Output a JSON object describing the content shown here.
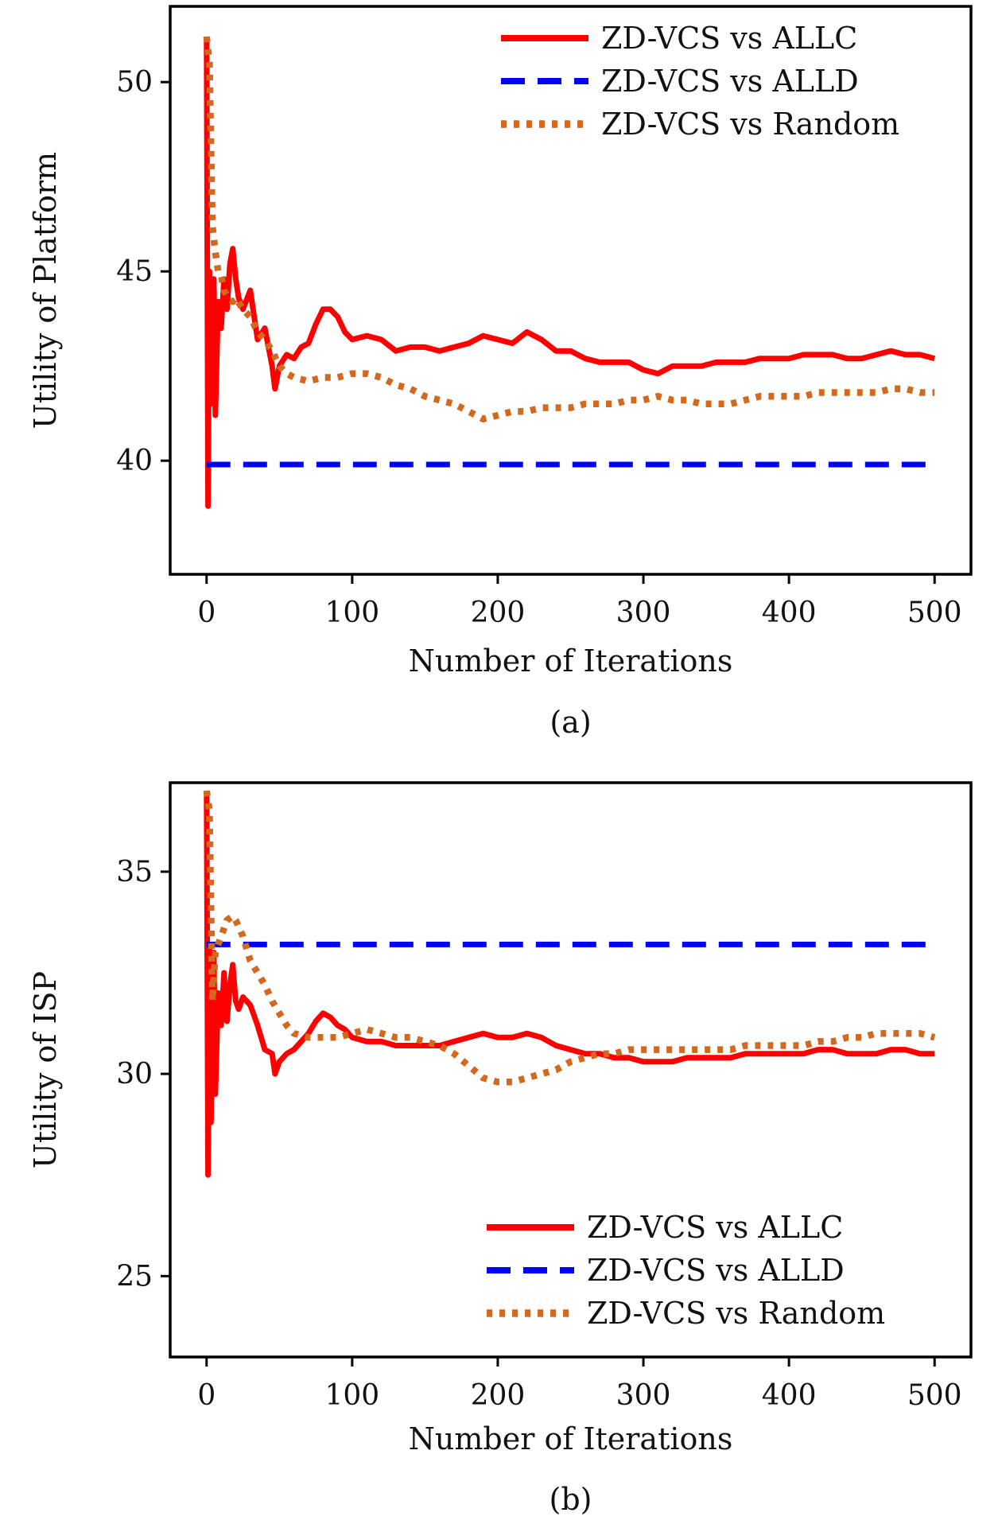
{
  "chart_data": [
    {
      "type": "line",
      "caption": "(a)",
      "xlabel": "Number of Iterations",
      "ylabel": "Utility of Platform",
      "xlim": [
        -25,
        525
      ],
      "ylim": [
        37,
        52
      ],
      "xticks": [
        0,
        100,
        200,
        300,
        400,
        500
      ],
      "yticks": [
        40,
        45,
        50
      ],
      "grid": false,
      "legend_position": "top-right",
      "series": [
        {
          "name": "ZD-VCS vs ALLC",
          "color": "#ff0000",
          "style": "solid",
          "points": [
            [
              0,
              51.2
            ],
            [
              1,
              38.8
            ],
            [
              2,
              45.0
            ],
            [
              3,
              41.5
            ],
            [
              5,
              44.8
            ],
            [
              6,
              41.2
            ],
            [
              8,
              44.2
            ],
            [
              10,
              43.5
            ],
            [
              12,
              44.8
            ],
            [
              14,
              44.0
            ],
            [
              16,
              45.2
            ],
            [
              18,
              45.6
            ],
            [
              20,
              44.8
            ],
            [
              22,
              44.3
            ],
            [
              25,
              44.0
            ],
            [
              30,
              44.5
            ],
            [
              35,
              43.2
            ],
            [
              40,
              43.5
            ],
            [
              45,
              42.5
            ],
            [
              47,
              41.9
            ],
            [
              50,
              42.5
            ],
            [
              55,
              42.8
            ],
            [
              60,
              42.7
            ],
            [
              65,
              43.0
            ],
            [
              70,
              43.1
            ],
            [
              75,
              43.6
            ],
            [
              80,
              44.0
            ],
            [
              85,
              44.0
            ],
            [
              90,
              43.8
            ],
            [
              95,
              43.4
            ],
            [
              100,
              43.2
            ],
            [
              110,
              43.3
            ],
            [
              120,
              43.2
            ],
            [
              130,
              42.9
            ],
            [
              140,
              43.0
            ],
            [
              150,
              43.0
            ],
            [
              160,
              42.9
            ],
            [
              170,
              43.0
            ],
            [
              180,
              43.1
            ],
            [
              190,
              43.3
            ],
            [
              200,
              43.2
            ],
            [
              210,
              43.1
            ],
            [
              220,
              43.4
            ],
            [
              230,
              43.2
            ],
            [
              240,
              42.9
            ],
            [
              250,
              42.9
            ],
            [
              260,
              42.7
            ],
            [
              270,
              42.6
            ],
            [
              280,
              42.6
            ],
            [
              290,
              42.6
            ],
            [
              300,
              42.4
            ],
            [
              310,
              42.3
            ],
            [
              320,
              42.5
            ],
            [
              330,
              42.5
            ],
            [
              340,
              42.5
            ],
            [
              350,
              42.6
            ],
            [
              360,
              42.6
            ],
            [
              370,
              42.6
            ],
            [
              380,
              42.7
            ],
            [
              390,
              42.7
            ],
            [
              400,
              42.7
            ],
            [
              410,
              42.8
            ],
            [
              420,
              42.8
            ],
            [
              430,
              42.8
            ],
            [
              440,
              42.7
            ],
            [
              450,
              42.7
            ],
            [
              460,
              42.8
            ],
            [
              470,
              42.9
            ],
            [
              480,
              42.8
            ],
            [
              490,
              42.8
            ],
            [
              500,
              42.7
            ]
          ]
        },
        {
          "name": "ZD-VCS vs ALLD",
          "color": "#0000ff",
          "style": "dashed",
          "points": [
            [
              0,
              39.9
            ],
            [
              500,
              39.9
            ]
          ]
        },
        {
          "name": "ZD-VCS vs Random",
          "color": "#d2691e",
          "style": "dotted",
          "points": [
            [
              0,
              51.2
            ],
            [
              2,
              50.5
            ],
            [
              4,
              46.2
            ],
            [
              6,
              45.5
            ],
            [
              8,
              45.0
            ],
            [
              10,
              44.9
            ],
            [
              12,
              44.5
            ],
            [
              15,
              44.3
            ],
            [
              18,
              44.2
            ],
            [
              20,
              44.3
            ],
            [
              25,
              44.0
            ],
            [
              30,
              43.8
            ],
            [
              35,
              43.4
            ],
            [
              40,
              43.2
            ],
            [
              45,
              42.9
            ],
            [
              50,
              42.5
            ],
            [
              55,
              42.3
            ],
            [
              60,
              42.2
            ],
            [
              70,
              42.1
            ],
            [
              80,
              42.2
            ],
            [
              90,
              42.2
            ],
            [
              100,
              42.3
            ],
            [
              110,
              42.3
            ],
            [
              120,
              42.2
            ],
            [
              130,
              42.0
            ],
            [
              140,
              41.9
            ],
            [
              150,
              41.7
            ],
            [
              160,
              41.6
            ],
            [
              170,
              41.5
            ],
            [
              180,
              41.3
            ],
            [
              190,
              41.1
            ],
            [
              200,
              41.2
            ],
            [
              210,
              41.3
            ],
            [
              220,
              41.3
            ],
            [
              230,
              41.4
            ],
            [
              240,
              41.4
            ],
            [
              250,
              41.4
            ],
            [
              260,
              41.5
            ],
            [
              270,
              41.5
            ],
            [
              280,
              41.5
            ],
            [
              290,
              41.6
            ],
            [
              300,
              41.6
            ],
            [
              310,
              41.7
            ],
            [
              320,
              41.6
            ],
            [
              330,
              41.6
            ],
            [
              340,
              41.5
            ],
            [
              350,
              41.5
            ],
            [
              360,
              41.5
            ],
            [
              370,
              41.6
            ],
            [
              380,
              41.7
            ],
            [
              390,
              41.7
            ],
            [
              400,
              41.7
            ],
            [
              410,
              41.7
            ],
            [
              420,
              41.8
            ],
            [
              430,
              41.8
            ],
            [
              440,
              41.8
            ],
            [
              450,
              41.8
            ],
            [
              460,
              41.8
            ],
            [
              470,
              41.9
            ],
            [
              480,
              41.9
            ],
            [
              490,
              41.8
            ],
            [
              500,
              41.8
            ]
          ]
        }
      ]
    },
    {
      "type": "line",
      "caption": "(b)",
      "xlabel": "Number of Iterations",
      "ylabel": "Utility of ISP",
      "xlim": [
        -25,
        525
      ],
      "ylim": [
        23,
        37.2
      ],
      "xticks": [
        0,
        100,
        200,
        300,
        400,
        500
      ],
      "yticks": [
        25,
        30,
        35
      ],
      "grid": false,
      "legend_position": "bottom-right",
      "series": [
        {
          "name": "ZD-VCS vs ALLC",
          "color": "#ff0000",
          "style": "solid",
          "points": [
            [
              0,
              37.0
            ],
            [
              1,
              27.5
            ],
            [
              2,
              33.2
            ],
            [
              3,
              28.8
            ],
            [
              5,
              33.0
            ],
            [
              6,
              29.5
            ],
            [
              8,
              32.0
            ],
            [
              10,
              31.2
            ],
            [
              12,
              32.5
            ],
            [
              14,
              31.3
            ],
            [
              16,
              32.2
            ],
            [
              18,
              32.7
            ],
            [
              20,
              31.8
            ],
            [
              22,
              31.6
            ],
            [
              25,
              31.9
            ],
            [
              30,
              31.7
            ],
            [
              35,
              31.2
            ],
            [
              40,
              30.6
            ],
            [
              45,
              30.5
            ],
            [
              47,
              30.0
            ],
            [
              50,
              30.3
            ],
            [
              55,
              30.5
            ],
            [
              60,
              30.6
            ],
            [
              65,
              30.8
            ],
            [
              70,
              31.0
            ],
            [
              75,
              31.3
            ],
            [
              80,
              31.5
            ],
            [
              85,
              31.4
            ],
            [
              90,
              31.2
            ],
            [
              95,
              31.1
            ],
            [
              100,
              30.9
            ],
            [
              110,
              30.8
            ],
            [
              120,
              30.8
            ],
            [
              130,
              30.7
            ],
            [
              140,
              30.7
            ],
            [
              150,
              30.7
            ],
            [
              160,
              30.7
            ],
            [
              170,
              30.8
            ],
            [
              180,
              30.9
            ],
            [
              190,
              31.0
            ],
            [
              200,
              30.9
            ],
            [
              210,
              30.9
            ],
            [
              220,
              31.0
            ],
            [
              230,
              30.9
            ],
            [
              240,
              30.7
            ],
            [
              250,
              30.6
            ],
            [
              260,
              30.5
            ],
            [
              270,
              30.5
            ],
            [
              280,
              30.4
            ],
            [
              290,
              30.4
            ],
            [
              300,
              30.3
            ],
            [
              310,
              30.3
            ],
            [
              320,
              30.3
            ],
            [
              330,
              30.4
            ],
            [
              340,
              30.4
            ],
            [
              350,
              30.4
            ],
            [
              360,
              30.4
            ],
            [
              370,
              30.5
            ],
            [
              380,
              30.5
            ],
            [
              390,
              30.5
            ],
            [
              400,
              30.5
            ],
            [
              410,
              30.5
            ],
            [
              420,
              30.6
            ],
            [
              430,
              30.6
            ],
            [
              440,
              30.5
            ],
            [
              450,
              30.5
            ],
            [
              460,
              30.5
            ],
            [
              470,
              30.6
            ],
            [
              480,
              30.6
            ],
            [
              490,
              30.5
            ],
            [
              500,
              30.5
            ]
          ]
        },
        {
          "name": "ZD-VCS vs ALLD",
          "color": "#0000ff",
          "style": "dashed",
          "points": [
            [
              0,
              33.2
            ],
            [
              500,
              33.2
            ]
          ]
        },
        {
          "name": "ZD-VCS vs Random",
          "color": "#d2691e",
          "style": "dotted",
          "points": [
            [
              0,
              37.0
            ],
            [
              2,
              36.5
            ],
            [
              4,
              31.8
            ],
            [
              6,
              33.0
            ],
            [
              8,
              33.2
            ],
            [
              10,
              33.4
            ],
            [
              14,
              33.8
            ],
            [
              18,
              33.9
            ],
            [
              20,
              33.8
            ],
            [
              25,
              33.4
            ],
            [
              30,
              32.8
            ],
            [
              35,
              32.5
            ],
            [
              40,
              32.2
            ],
            [
              45,
              31.8
            ],
            [
              50,
              31.5
            ],
            [
              55,
              31.2
            ],
            [
              60,
              31.0
            ],
            [
              70,
              30.9
            ],
            [
              80,
              30.9
            ],
            [
              90,
              30.9
            ],
            [
              100,
              31.0
            ],
            [
              110,
              31.1
            ],
            [
              120,
              31.0
            ],
            [
              130,
              30.9
            ],
            [
              140,
              30.9
            ],
            [
              150,
              30.8
            ],
            [
              160,
              30.7
            ],
            [
              170,
              30.5
            ],
            [
              180,
              30.2
            ],
            [
              190,
              29.9
            ],
            [
              200,
              29.8
            ],
            [
              210,
              29.8
            ],
            [
              220,
              29.9
            ],
            [
              230,
              30.0
            ],
            [
              240,
              30.1
            ],
            [
              250,
              30.3
            ],
            [
              260,
              30.4
            ],
            [
              270,
              30.5
            ],
            [
              280,
              30.5
            ],
            [
              290,
              30.6
            ],
            [
              300,
              30.6
            ],
            [
              310,
              30.6
            ],
            [
              320,
              30.6
            ],
            [
              330,
              30.6
            ],
            [
              340,
              30.6
            ],
            [
              350,
              30.6
            ],
            [
              360,
              30.6
            ],
            [
              370,
              30.7
            ],
            [
              380,
              30.7
            ],
            [
              390,
              30.7
            ],
            [
              400,
              30.7
            ],
            [
              410,
              30.7
            ],
            [
              420,
              30.8
            ],
            [
              430,
              30.8
            ],
            [
              440,
              30.9
            ],
            [
              450,
              30.9
            ],
            [
              460,
              31.0
            ],
            [
              470,
              31.0
            ],
            [
              480,
              31.0
            ],
            [
              490,
              31.0
            ],
            [
              500,
              30.9
            ]
          ]
        }
      ]
    }
  ]
}
